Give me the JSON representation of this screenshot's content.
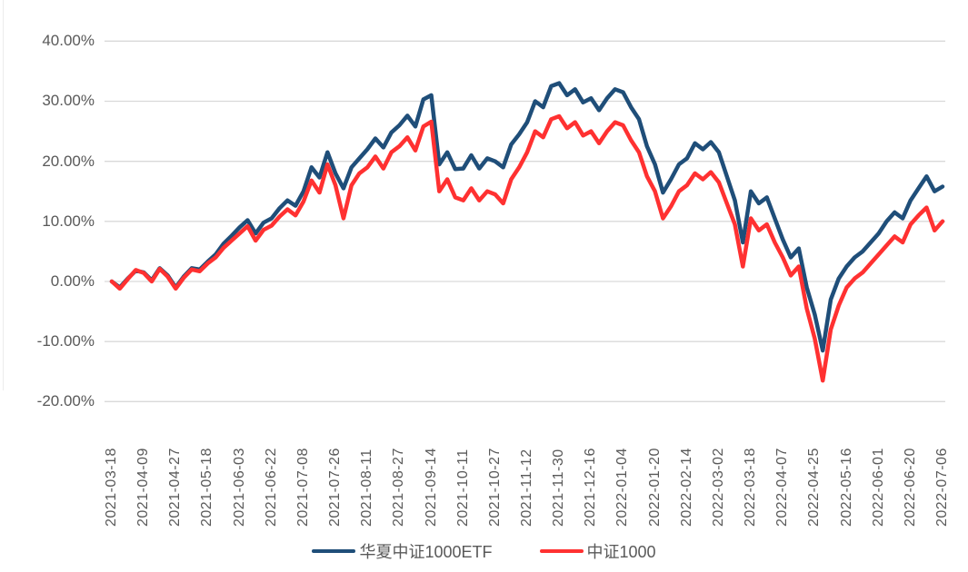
{
  "chart_data": {
    "type": "line",
    "title": "",
    "legend_position": "bottom",
    "background_color": "#FFFFFF",
    "gridline_color": "#D9D9D9",
    "axis_label_color": "#595959",
    "grid": "horizontal-only",
    "y_axis": {
      "min": -20,
      "max": 40,
      "tick_step": 10,
      "tick_labels": [
        "40.00%",
        "30.00%",
        "20.00%",
        "10.00%",
        "0.00%",
        "-10.00%",
        "-20.00%"
      ],
      "tick_values": [
        40,
        30,
        20,
        10,
        0,
        -10,
        -20
      ]
    },
    "x_axis": {
      "tick_labels": [
        "2021-03-18",
        "2021-04-09",
        "2021-04-27",
        "2021-05-18",
        "2021-06-03",
        "2021-06-22",
        "2021-07-08",
        "2021-07-26",
        "2021-08-11",
        "2021-08-27",
        "2021-09-14",
        "2021-10-11",
        "2021-10-27",
        "2021-11-12",
        "2021-11-30",
        "2021-12-16",
        "2022-01-04",
        "2022-01-20",
        "2022-02-14",
        "2022-03-02",
        "2022-03-18",
        "2022-04-07",
        "2022-04-25",
        "2022-05-16",
        "2022-06-01",
        "2022-06-20",
        "2022-07-06"
      ],
      "points_per_tick_interval": 4,
      "label_rotation_deg": 90
    },
    "series": [
      {
        "name": "华夏中证1000ETF",
        "color": "#1F4E79",
        "unit": "percent",
        "values": [
          0.0,
          -1.0,
          0.5,
          1.8,
          1.5,
          0.2,
          2.2,
          1.0,
          -1.0,
          0.8,
          2.2,
          2.0,
          3.3,
          4.5,
          6.3,
          7.6,
          9.0,
          10.2,
          8.0,
          9.8,
          10.5,
          12.2,
          13.5,
          12.6,
          15.0,
          19.0,
          17.3,
          21.5,
          18.0,
          15.5,
          19.0,
          20.5,
          22.0,
          23.8,
          22.3,
          24.8,
          26.0,
          27.6,
          25.8,
          30.3,
          31.0,
          19.5,
          21.5,
          18.7,
          18.8,
          21.0,
          18.8,
          20.5,
          20.0,
          19.0,
          22.8,
          24.5,
          26.5,
          30.0,
          29.0,
          32.5,
          33.0,
          31.0,
          32.0,
          29.8,
          30.5,
          28.5,
          30.5,
          32.0,
          31.5,
          29.0,
          27.0,
          22.5,
          19.5,
          14.8,
          17.0,
          19.5,
          20.5,
          23.0,
          22.0,
          23.2,
          21.5,
          17.5,
          13.5,
          6.5,
          15.0,
          13.0,
          14.0,
          10.5,
          7.0,
          4.0,
          5.5,
          -1.0,
          -5.5,
          -11.5,
          -3.0,
          0.5,
          2.5,
          4.0,
          5.0,
          6.5,
          8.0,
          10.0,
          11.5,
          10.5,
          13.5,
          15.5,
          17.5,
          15.0,
          15.8
        ]
      },
      {
        "name": "中证1000",
        "color": "#FF3131",
        "unit": "percent",
        "values": [
          0.0,
          -1.2,
          0.4,
          1.9,
          1.4,
          0.0,
          2.1,
          0.8,
          -1.2,
          0.6,
          2.0,
          1.7,
          3.0,
          4.0,
          5.6,
          6.8,
          8.0,
          9.2,
          6.8,
          8.6,
          9.3,
          10.8,
          12.0,
          11.0,
          13.3,
          16.8,
          14.8,
          19.5,
          16.0,
          10.5,
          16.0,
          18.0,
          19.0,
          20.8,
          18.8,
          21.5,
          22.5,
          24.0,
          21.8,
          25.8,
          26.6,
          15.0,
          17.0,
          14.0,
          13.5,
          15.5,
          13.5,
          15.0,
          14.5,
          13.0,
          17.0,
          19.0,
          21.5,
          25.0,
          24.0,
          27.0,
          27.5,
          25.5,
          26.5,
          24.3,
          25.0,
          23.0,
          25.0,
          26.5,
          26.0,
          23.5,
          21.5,
          17.5,
          15.0,
          10.5,
          12.5,
          15.0,
          16.0,
          18.0,
          17.0,
          18.2,
          16.5,
          13.0,
          9.5,
          2.5,
          10.5,
          8.5,
          9.5,
          6.5,
          4.0,
          1.0,
          2.5,
          -4.5,
          -9.5,
          -16.5,
          -8.0,
          -4.0,
          -1.0,
          0.5,
          1.5,
          3.0,
          4.5,
          6.0,
          7.5,
          6.5,
          9.5,
          11.0,
          12.3,
          8.5,
          10.0
        ]
      }
    ]
  }
}
